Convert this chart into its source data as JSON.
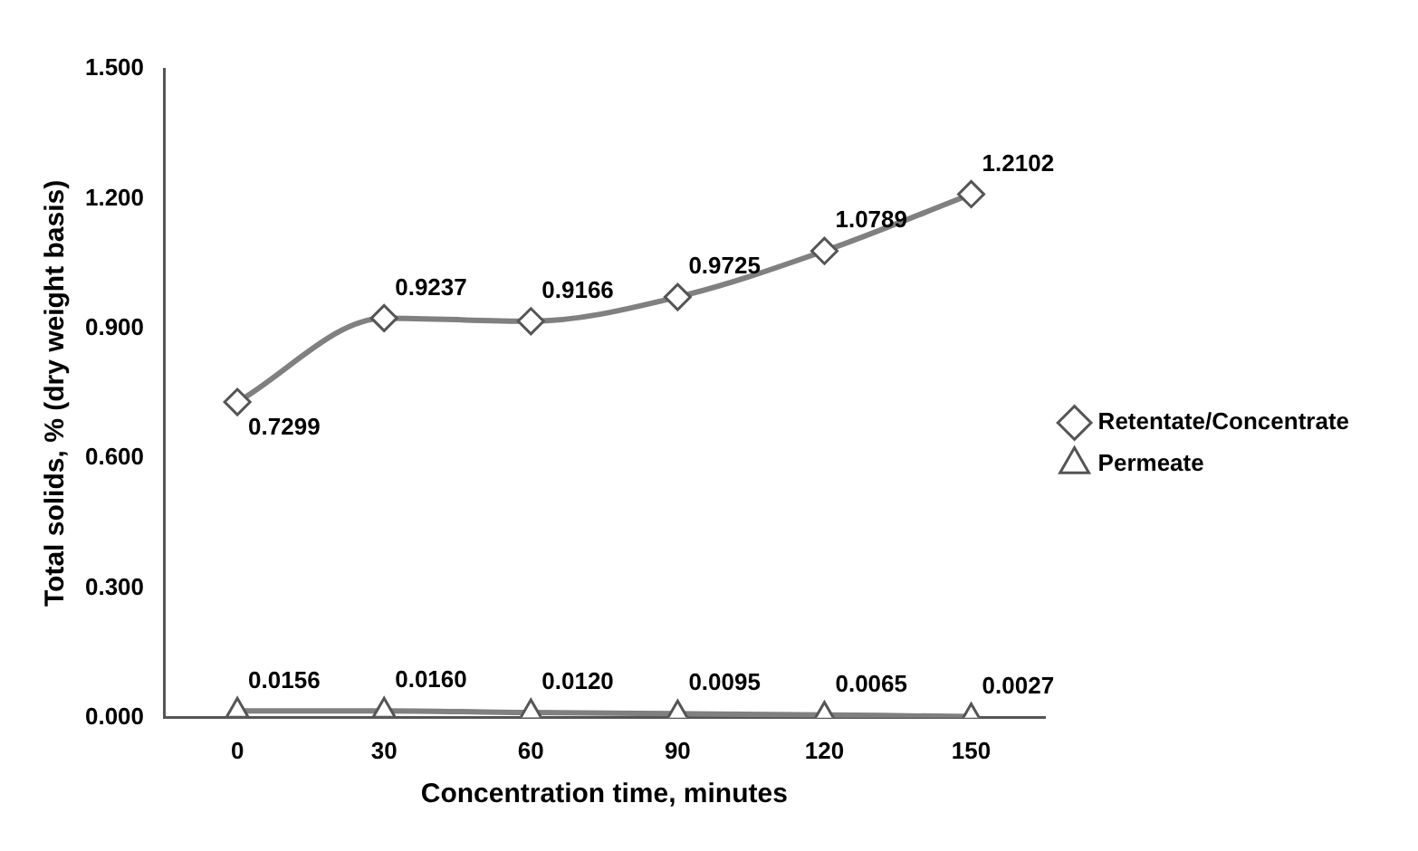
{
  "chart_data": {
    "type": "line",
    "xlabel": "Concentration time, minutes",
    "ylabel": "Total solids, % (dry weight basis)",
    "categories": [
      "0",
      "30",
      "60",
      "90",
      "120",
      "150"
    ],
    "series": [
      {
        "name": "Retentate/Concentrate",
        "color": "#808080",
        "marker": "diamond",
        "values": [
          0.7299,
          0.9237,
          0.9166,
          0.9725,
          1.0789,
          1.2102
        ],
        "value_labels": [
          "0.7299",
          "0.9237",
          "0.9166",
          "0.9725",
          "1.0789",
          "1.2102"
        ]
      },
      {
        "name": "Permeate",
        "color": "#808080",
        "marker": "triangle",
        "values": [
          0.0156,
          0.016,
          0.012,
          0.0095,
          0.0065,
          0.0027
        ],
        "value_labels": [
          "0.0156",
          "0.0160",
          "0.0120",
          "0.0095",
          "0.0065",
          "0.0027"
        ]
      }
    ],
    "ylim": [
      0,
      1.5
    ],
    "yticks": [
      {
        "value": 0,
        "label": "0.000"
      },
      {
        "value": 0.3,
        "label": "0.300"
      },
      {
        "value": 0.6,
        "label": "0.600"
      },
      {
        "value": 0.9,
        "label": "0.900"
      },
      {
        "value": 1.2,
        "label": "1.200"
      },
      {
        "value": 1.5,
        "label": "1.500"
      }
    ],
    "grid": false,
    "legend": "right"
  }
}
